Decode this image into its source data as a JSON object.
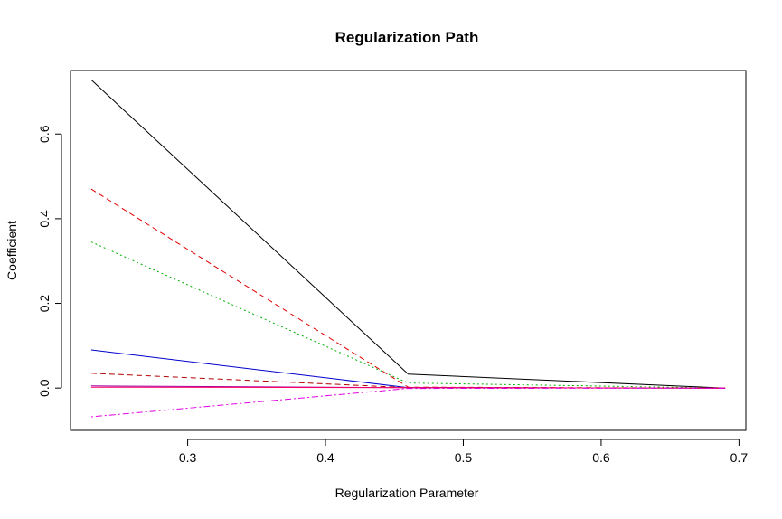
{
  "chart_data": {
    "type": "line",
    "title": "Regularization Path",
    "xlabel": "Regularization Parameter",
    "ylabel": "Coefficient",
    "xlim": [
      0.215,
      0.705
    ],
    "ylim": [
      -0.1,
      0.75
    ],
    "x_ticks": [
      0.3,
      0.4,
      0.5,
      0.6,
      0.7
    ],
    "y_ticks": [
      0.0,
      0.2,
      0.4,
      0.6
    ],
    "x_tick_labels": [
      "0.3",
      "0.4",
      "0.5",
      "0.6",
      "0.7"
    ],
    "y_tick_labels": [
      "0.0",
      "0.2",
      "0.4",
      "0.6"
    ],
    "grid": false,
    "legend": "none",
    "x": [
      0.23,
      0.46,
      0.69
    ],
    "series": [
      {
        "values": [
          0.728,
          0.033,
          0.0
        ],
        "color": "#000000",
        "dash": "solid"
      },
      {
        "values": [
          0.47,
          0.002,
          0.0
        ],
        "color": "#DF0000",
        "dash": "dashed"
      },
      {
        "values": [
          0.345,
          0.012,
          0.0
        ],
        "color": "#00B000",
        "dash": "dotted"
      },
      {
        "values": [
          0.09,
          0.001,
          0.0
        ],
        "color": "#0000CC",
        "dash": "solid"
      },
      {
        "values": [
          0.035,
          0.001,
          0.0
        ],
        "color": "#B00000",
        "dash": "dashed"
      },
      {
        "values": [
          0.005,
          0.001,
          0.0
        ],
        "color": "#A000A0",
        "dash": "solid"
      },
      {
        "values": [
          0.002,
          0.001,
          0.0
        ],
        "color": "#FF0066",
        "dash": "solid"
      },
      {
        "values": [
          -0.068,
          -0.001,
          0.0
        ],
        "color": "#E000E0",
        "dash": "dotdash"
      }
    ]
  }
}
